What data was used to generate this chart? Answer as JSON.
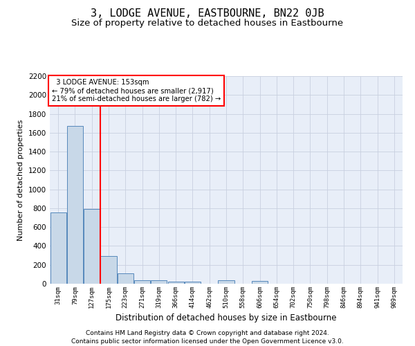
{
  "title": "3, LODGE AVENUE, EASTBOURNE, BN22 0JB",
  "subtitle": "Size of property relative to detached houses in Eastbourne",
  "xlabel": "Distribution of detached houses by size in Eastbourne",
  "ylabel": "Number of detached properties",
  "footnote1": "Contains HM Land Registry data © Crown copyright and database right 2024.",
  "footnote2": "Contains public sector information licensed under the Open Government Licence v3.0.",
  "categories": [
    "31sqm",
    "79sqm",
    "127sqm",
    "175sqm",
    "223sqm",
    "271sqm",
    "319sqm",
    "366sqm",
    "414sqm",
    "462sqm",
    "510sqm",
    "558sqm",
    "606sqm",
    "654sqm",
    "702sqm",
    "750sqm",
    "798sqm",
    "846sqm",
    "894sqm",
    "941sqm",
    "989sqm"
  ],
  "values": [
    755,
    1670,
    790,
    290,
    110,
    40,
    35,
    25,
    20,
    0,
    35,
    0,
    30,
    0,
    0,
    0,
    0,
    0,
    0,
    0,
    0
  ],
  "bar_color": "#c8d8e8",
  "bar_edge_color": "#5588bb",
  "red_line_x": 2.5,
  "annotation_line1": "  3 LODGE AVENUE: 153sqm",
  "annotation_line2": "← 79% of detached houses are smaller (2,917)",
  "annotation_line3": "21% of semi-detached houses are larger (782) →",
  "annotation_box_color": "white",
  "annotation_box_edge": "red",
  "ylim": [
    0,
    2200
  ],
  "yticks": [
    0,
    200,
    400,
    600,
    800,
    1000,
    1200,
    1400,
    1600,
    1800,
    2000,
    2200
  ],
  "grid_color": "#c8cfe0",
  "bg_color": "#e8eef8",
  "title_fontsize": 11,
  "subtitle_fontsize": 9.5,
  "footnote_fontsize": 6.5
}
